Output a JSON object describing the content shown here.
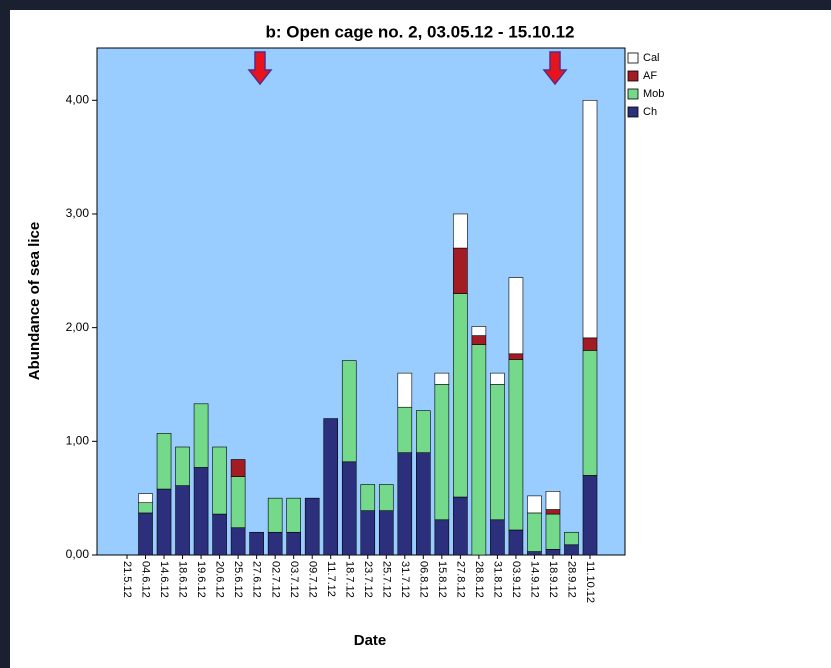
{
  "chart_data": {
    "type": "stacked_bar",
    "title": "b: Open cage no. 2, 03.05.12 - 15.10.12",
    "x_label": "Date",
    "y_label": "Abundance of sea lice",
    "categories": [
      "21.5.12",
      "04.6.12",
      "14.6.12",
      "18.6.12",
      "19.6.12",
      "20.6.12",
      "25.6.12",
      "27.6.12",
      "02.7.12",
      "03.7.12",
      "09.7.12",
      "11.7.12",
      "18.7.12",
      "23.7.12",
      "25.7.12",
      "31.7.12",
      "06.8.12",
      "15.8.12",
      "27.8.12",
      "28.8.12",
      "31.8.12",
      "03.9.12",
      "14.9.12",
      "18.9.12",
      "28.9.12",
      "11.10.12"
    ],
    "series": [
      {
        "name": "Ch",
        "color": "#2b2f7c",
        "values": [
          0,
          0.37,
          0.58,
          0.61,
          0.77,
          0.36,
          0.24,
          0.2,
          0.2,
          0.2,
          0.5,
          1.2,
          0.82,
          0.39,
          0.39,
          0.9,
          0.9,
          0.31,
          0.51,
          0,
          0.31,
          0.22,
          0.03,
          0.05,
          0.09,
          0.7
        ]
      },
      {
        "name": "Mob",
        "color": "#74d98b",
        "values": [
          0,
          0.09,
          0.49,
          0.34,
          0.56,
          0.59,
          0.45,
          0,
          0.3,
          0.3,
          0,
          0,
          0.89,
          0.23,
          0.23,
          0.4,
          0.37,
          1.19,
          1.79,
          1.85,
          1.19,
          1.5,
          0.34,
          0.31,
          0.11,
          1.1
        ]
      },
      {
        "name": "AF",
        "color": "#a31c24",
        "values": [
          0,
          0,
          0,
          0,
          0,
          0,
          0.15,
          0,
          0,
          0,
          0,
          0,
          0,
          0,
          0,
          0,
          0,
          0,
          0.4,
          0.08,
          0,
          0.05,
          0,
          0.04,
          0,
          0.11
        ]
      },
      {
        "name": "Cal",
        "color": "#ffffff",
        "values": [
          0,
          0.08,
          0,
          0,
          0,
          0,
          0,
          0,
          0,
          0,
          0,
          0,
          0,
          0,
          0,
          0.3,
          0,
          0.1,
          0.3,
          0.08,
          0.1,
          0.67,
          0.15,
          0.16,
          0,
          2.09
        ]
      }
    ],
    "ylim": [
      0,
      4.46
    ],
    "yticks": [
      {
        "value": 0,
        "label": "0,00"
      },
      {
        "value": 1,
        "label": "1,00"
      },
      {
        "value": 2,
        "label": "2,00"
      },
      {
        "value": 3,
        "label": "3,00"
      },
      {
        "value": 4,
        "label": "4,00"
      }
    ],
    "plot_background": "#99ccff"
  }
}
